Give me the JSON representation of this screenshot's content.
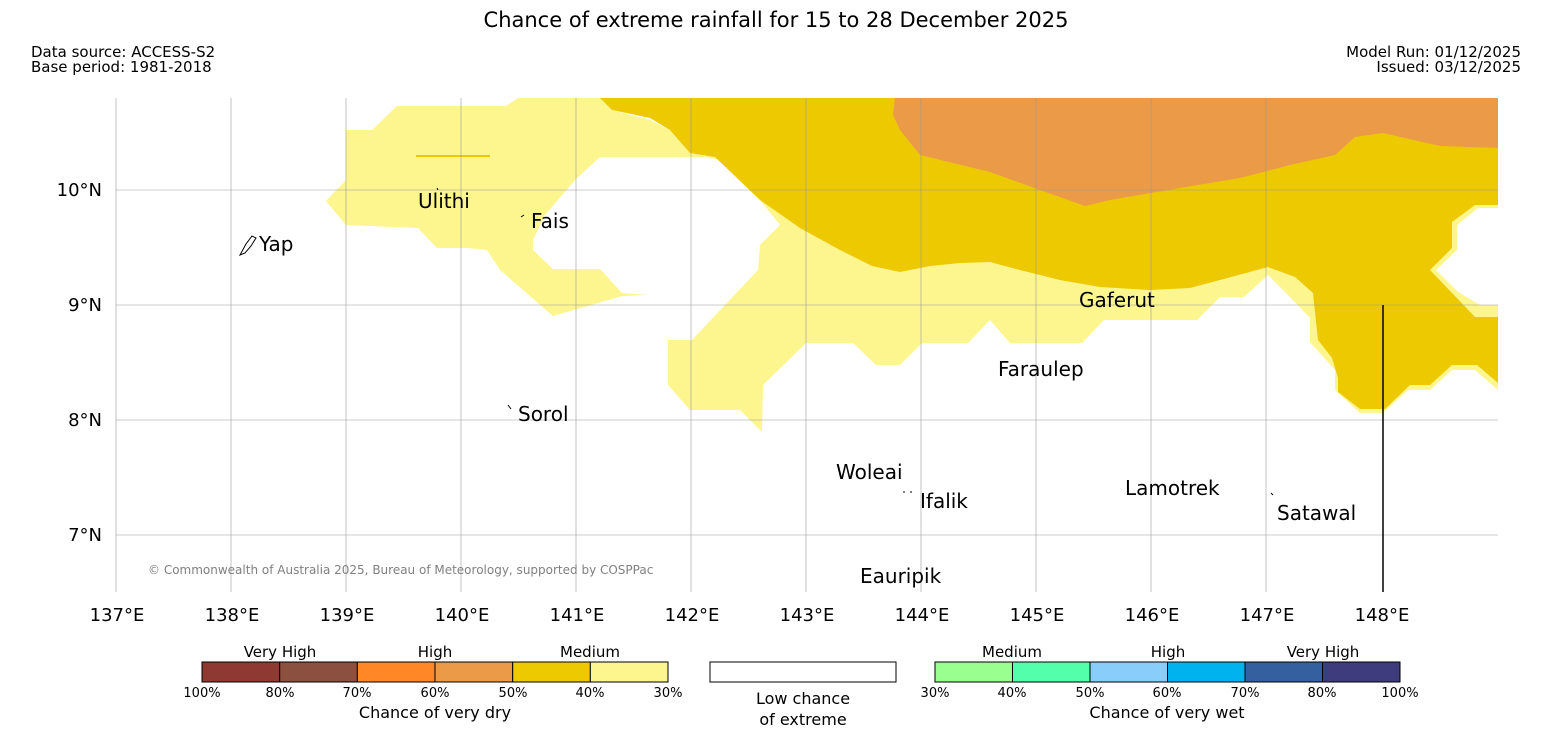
{
  "header": {
    "title": "Chance of extreme rainfall for 15 to 28 December 2025",
    "data_source": "Data source: ACCESS-S2",
    "base_period": "Base period: 1981-2018",
    "model_run": "Model Run: 01/12/2025",
    "issued": "Issued: 03/12/2025"
  },
  "map": {
    "lon_labels": [
      "137°E",
      "138°E",
      "139°E",
      "140°E",
      "141°E",
      "142°E",
      "143°E",
      "144°E",
      "145°E",
      "146°E",
      "147°E",
      "148°E"
    ],
    "lat_labels": [
      "10°N",
      "9°N",
      "8°N",
      "7°N"
    ],
    "places": {
      "yap": "Yap",
      "ulithi": "Ulithi",
      "fais": "Fais",
      "sorol": "Sorol",
      "gaferut": "Gaferut",
      "faraulep": "Faraulep",
      "woleai": "Woleai",
      "ifalik": "Ifalik",
      "lamotrek": "Lamotrek",
      "satawal": "Satawal",
      "eauripik": "Eauripik"
    },
    "copyright": "© Commonwealth of Australia 2025, Bureau of Meteorology, supported by COSPPac"
  },
  "legend": {
    "dry": {
      "group_labels": [
        "Very High",
        "High",
        "Medium"
      ],
      "colors": [
        "#8e3a32",
        "#8c5040",
        "#ff8726",
        "#eb9b47",
        "#ecc900",
        "#fdf58e"
      ],
      "ticks": [
        "100%",
        "80%",
        "70%",
        "60%",
        "50%",
        "40%",
        "30%"
      ],
      "caption": "Chance of very dry"
    },
    "low": {
      "line1": "Low chance",
      "line2": "of extreme"
    },
    "wet": {
      "group_labels": [
        "Medium",
        "High",
        "Very High"
      ],
      "colors": [
        "#99ff8f",
        "#53ffaa",
        "#89cdfb",
        "#00b3ef",
        "#34609f",
        "#3f3c7d"
      ],
      "ticks": [
        "30%",
        "40%",
        "50%",
        "60%",
        "70%",
        "80%",
        "100%"
      ],
      "caption": "Chance of very wet"
    }
  }
}
